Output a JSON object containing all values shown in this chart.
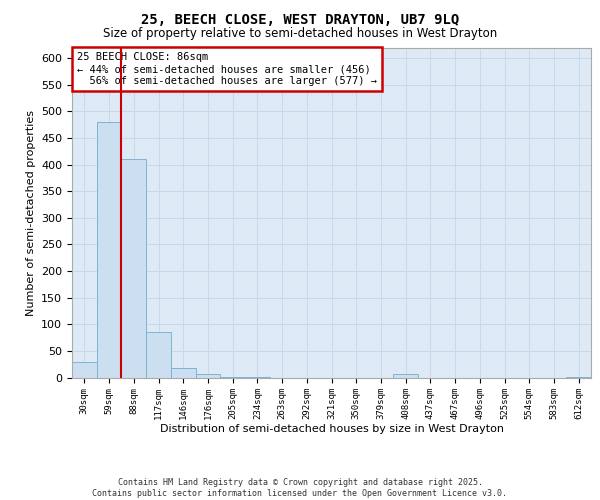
{
  "title1": "25, BEECH CLOSE, WEST DRAYTON, UB7 9LQ",
  "title2": "Size of property relative to semi-detached houses in West Drayton",
  "xlabel": "Distribution of semi-detached houses by size in West Drayton",
  "ylabel": "Number of semi-detached properties",
  "footnote": "Contains HM Land Registry data © Crown copyright and database right 2025.\nContains public sector information licensed under the Open Government Licence v3.0.",
  "bin_labels": [
    "30sqm",
    "59sqm",
    "88sqm",
    "117sqm",
    "146sqm",
    "176sqm",
    "205sqm",
    "234sqm",
    "263sqm",
    "292sqm",
    "321sqm",
    "350sqm",
    "379sqm",
    "408sqm",
    "437sqm",
    "467sqm",
    "496sqm",
    "525sqm",
    "554sqm",
    "583sqm",
    "612sqm"
  ],
  "bar_values": [
    30,
    480,
    410,
    85,
    18,
    7,
    1,
    1,
    0,
    0,
    0,
    0,
    0,
    6,
    0,
    0,
    0,
    0,
    0,
    0,
    1
  ],
  "bar_color": "#ccdff0",
  "bar_edge_color": "#7fb3d3",
  "vline_color": "#cc0000",
  "annotation_text": "25 BEECH CLOSE: 86sqm\n← 44% of semi-detached houses are smaller (456)\n  56% of semi-detached houses are larger (577) →",
  "ylim": [
    0,
    620
  ],
  "yticks": [
    0,
    50,
    100,
    150,
    200,
    250,
    300,
    350,
    400,
    450,
    500,
    550,
    600
  ],
  "grid_color": "#c8d8e8",
  "background_color": "#ddeaf5"
}
